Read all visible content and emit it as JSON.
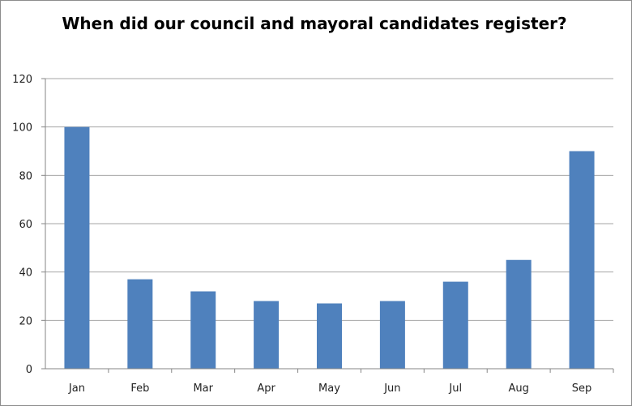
{
  "chart_data": {
    "type": "bar",
    "title": "When did our council and mayoral candidates register?",
    "xlabel": "",
    "ylabel": "",
    "categories": [
      "Jan",
      "Feb",
      "Mar",
      "Apr",
      "May",
      "Jun",
      "Jul",
      "Aug",
      "Sep"
    ],
    "values": [
      100,
      37,
      32,
      28,
      27,
      28,
      36,
      45,
      90
    ],
    "ylim": [
      0,
      120
    ],
    "yticks": [
      0,
      20,
      40,
      60,
      80,
      100,
      120
    ],
    "grid": true,
    "legend": "none",
    "bar_color": "#4f81bd",
    "grid_color": "#a6a6a6"
  }
}
